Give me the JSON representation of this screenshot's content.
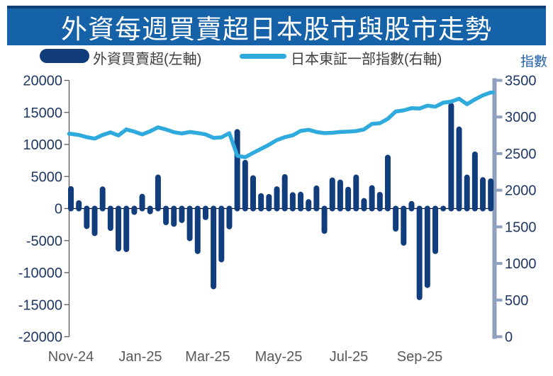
{
  "title": "外資每週買賣超日本股市與股市走勢",
  "legend": {
    "bar_series_label": "外資買賣超(左軸)",
    "line_series_label": "日本東証一部指數(右軸)"
  },
  "right_axis_title": "指數",
  "colors": {
    "banner_bg": "#1562A9",
    "banner_top_border": "#0F3E75",
    "bar_fill": "#123D7C",
    "line_stroke": "#2EAADC",
    "right_spine": "#8F9FBE",
    "left_axis_text": "#1F3864",
    "x_axis_text": "#595959",
    "zero_line": "#000000",
    "left_spine": "#595959"
  },
  "chart_data": {
    "type": "bar",
    "title": "外資每週買賣超日本股市與股市走勢",
    "x_tick_labels": [
      "Nov-24",
      "Jan-25",
      "Mar-25",
      "May-25",
      "Jul-25",
      "Sep-25"
    ],
    "x_tick_week_index": [
      0,
      8.77,
      17.27,
      26.22,
      35.08,
      44.03
    ],
    "left_axis": {
      "min": -20000,
      "max": 20000,
      "step": 5000,
      "tick_labels": [
        "20000",
        "15000",
        "10000",
        "5000",
        "0",
        "-5000",
        "-10000",
        "-15000",
        "-20000"
      ]
    },
    "right_axis": {
      "min": 0,
      "max": 3500,
      "step": 500,
      "tick_labels": [
        "3500",
        "3000",
        "2500",
        "2000",
        "1500",
        "1000",
        "500",
        "0"
      ]
    },
    "grid": false,
    "legend_position": "top",
    "series": [
      {
        "name": "外資買賣超(左軸)",
        "type": "bar",
        "axis": "left",
        "values": [
          3500,
          1300,
          -3200,
          -4300,
          3450,
          -3500,
          -6700,
          -6800,
          -1000,
          2300,
          -900,
          5300,
          -2600,
          -2850,
          -2260,
          -5100,
          -7100,
          -1800,
          -12600,
          -8400,
          -3250,
          12400,
          7600,
          5200,
          2400,
          2270,
          3470,
          5370,
          2560,
          2620,
          1460,
          3600,
          -3950,
          4850,
          4520,
          3400,
          5300,
          1640,
          3650,
          2600,
          8400,
          -3600,
          -5800,
          1170,
          -14300,
          -12400,
          -7100,
          -300,
          16500,
          12800,
          5300,
          8900,
          4900,
          4700
        ]
      },
      {
        "name": "日本東証一部指數(右軸)",
        "type": "line",
        "axis": "right",
        "values": [
          2770,
          2755,
          2725,
          2705,
          2755,
          2790,
          2748,
          2830,
          2800,
          2762,
          2805,
          2858,
          2830,
          2792,
          2775,
          2795,
          2782,
          2762,
          2715,
          2722,
          2780,
          2470,
          2450,
          2510,
          2565,
          2620,
          2685,
          2725,
          2750,
          2810,
          2825,
          2795,
          2780,
          2785,
          2795,
          2800,
          2808,
          2830,
          2905,
          2915,
          2975,
          3075,
          3090,
          3120,
          3115,
          3155,
          3140,
          3195,
          3210,
          3250,
          3175,
          3240,
          3295,
          3335
        ]
      }
    ]
  }
}
